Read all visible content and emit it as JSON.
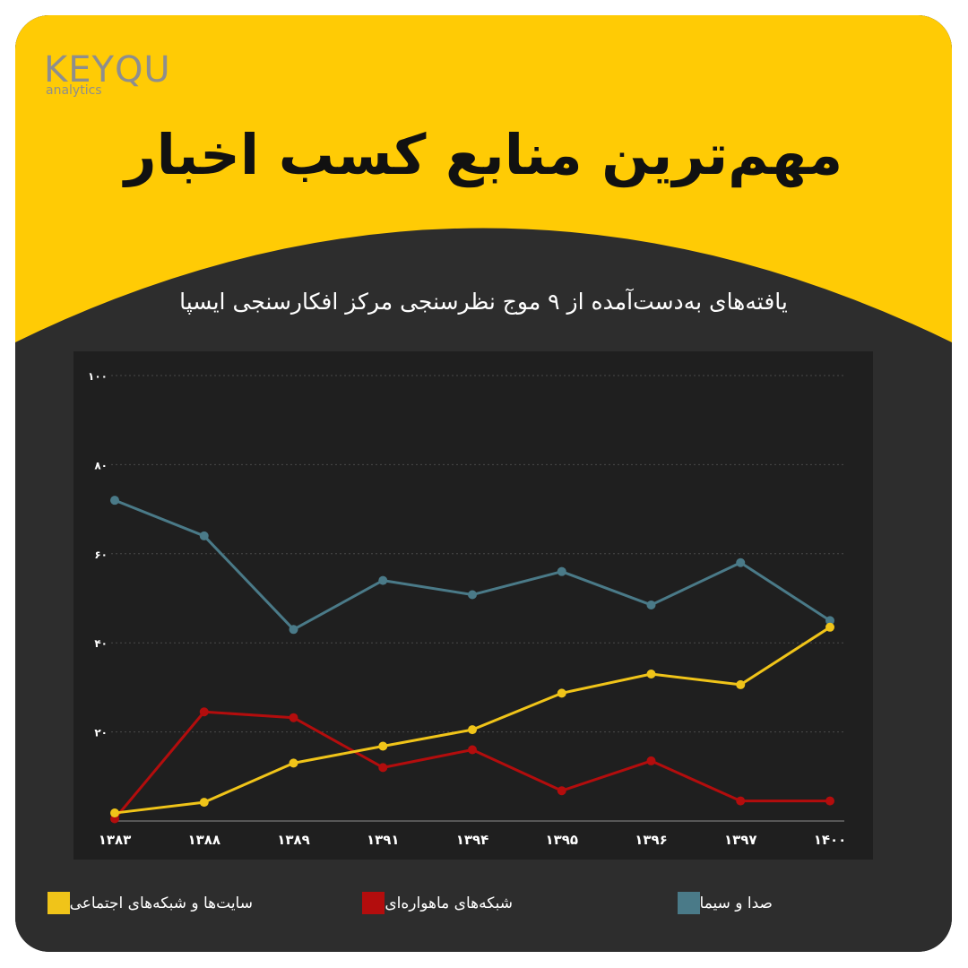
{
  "brand": {
    "logo_text": "KEYQU",
    "logo_sub": "analytics"
  },
  "header": {
    "title": "مهم‌ترین منابع کسب اخبار",
    "subtitle": "یافته‌های به‌دست‌آمده از ۹ موج نظرسنجی مرکز افکارسنجی ایسپا"
  },
  "colors": {
    "accent": "#ffcb05",
    "card_bg": "#2d2d2d",
    "plot_bg": "#1f1f1f",
    "series_tv": "#4a7a88",
    "series_satellite": "#b30d0d",
    "series_web": "#f0c419"
  },
  "chart_data": {
    "type": "line",
    "categories": [
      "۱۳۸۳",
      "۱۳۸۸",
      "۱۳۸۹",
      "۱۳۹۱",
      "۱۳۹۴",
      "۱۳۹۵",
      "۱۳۹۶",
      "۱۳۹۷",
      "۱۴۰۰"
    ],
    "yticks": [
      "۰",
      "۲۰",
      "۴۰",
      "۶۰",
      "۸۰",
      "۱۰۰"
    ],
    "ylim": [
      0,
      100
    ],
    "grid": true,
    "legend_position": "bottom",
    "series": [
      {
        "name": "صدا و سیما",
        "color": "#4a7a88",
        "values": [
          72,
          64,
          43,
          54,
          50.8,
          56,
          48.5,
          58,
          45
        ]
      },
      {
        "name": "شبکه‌های ماهواره‌ای",
        "color": "#b30d0d",
        "values": [
          0.5,
          24.5,
          23.2,
          12,
          16,
          6.8,
          13.5,
          4.5,
          4.5
        ]
      },
      {
        "name": "سایت‌ها و شبکه‌های اجتماعی",
        "color": "#f0c419",
        "values": [
          1.8,
          4.2,
          13,
          16.8,
          20.5,
          28.7,
          33,
          30.6,
          43.5
        ]
      }
    ]
  }
}
